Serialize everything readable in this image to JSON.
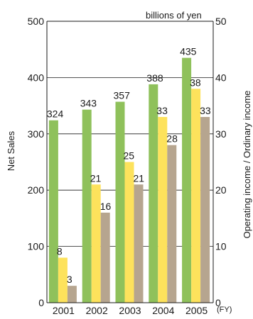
{
  "chart_data": {
    "type": "bar",
    "categories": [
      "2001",
      "2002",
      "2003",
      "2004",
      "2005"
    ],
    "x_unit_label": "(FY)",
    "units_label": "billions of yen",
    "left_axis": {
      "label": "Net Sales",
      "ylim": [
        0,
        500
      ],
      "ticks": [
        0,
        100,
        200,
        300,
        400,
        500
      ]
    },
    "right_axis": {
      "label": "Operating income / Ordinary income",
      "ylim": [
        0,
        50
      ],
      "ticks": [
        0,
        10,
        20,
        30,
        40,
        50
      ]
    },
    "series": [
      {
        "key": "net-sales",
        "axis": "left",
        "color": "#8fc15b",
        "values": [
          324,
          343,
          357,
          388,
          435
        ]
      },
      {
        "key": "operating-income",
        "axis": "right",
        "color": "#fde25c",
        "values": [
          8,
          21,
          25,
          33,
          38
        ]
      },
      {
        "key": "ordinary-income",
        "axis": "right",
        "color": "#b6a58f",
        "values": [
          3,
          16,
          21,
          28,
          33
        ]
      }
    ],
    "grid": true,
    "legend": "none"
  }
}
